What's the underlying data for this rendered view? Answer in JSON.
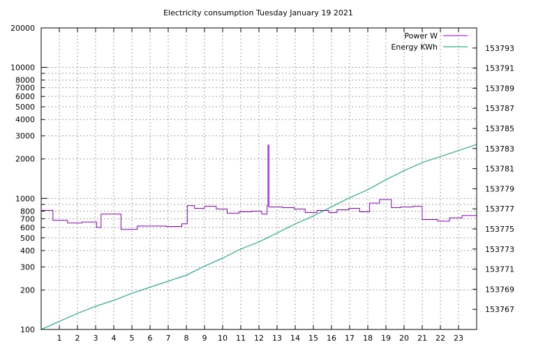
{
  "chart_data": {
    "type": "line",
    "title": "Electricity consumption Tuesday January 19 2021",
    "xlabel": "",
    "ylabel": "",
    "y2label": "",
    "x_ticks": [
      "1",
      "2",
      "3",
      "4",
      "5",
      "6",
      "7",
      "8",
      "9",
      "10",
      "11",
      "12",
      "13",
      "14",
      "15",
      "16",
      "17",
      "18",
      "19",
      "20",
      "21",
      "22",
      "23"
    ],
    "xlim": [
      0,
      24
    ],
    "y_scale": "log",
    "ylim": [
      100,
      20000
    ],
    "y_major_ticks": [
      100,
      1000,
      10000
    ],
    "y_minor_labeled_ticks": [
      200,
      300,
      400,
      500,
      600,
      700,
      800,
      2000,
      3000,
      4000,
      5000,
      6000,
      7000,
      8000,
      20000
    ],
    "y_unlabeled_ticks": [
      900,
      9000
    ],
    "y_tick_labels": [
      "100",
      "200",
      "300",
      "400",
      "500",
      "600",
      "700",
      "800",
      "1000",
      "2000",
      "3000",
      "4000",
      "5000",
      "6000",
      "7000",
      "8000",
      "10000",
      "20000"
    ],
    "y2_scale": "linear",
    "y2lim": [
      153765,
      153795
    ],
    "y2_ticks": [
      153767,
      153769,
      153771,
      153773,
      153775,
      153777,
      153779,
      153781,
      153783,
      153785,
      153787,
      153789,
      153791,
      153793
    ],
    "y2_tick_labels": [
      "153767",
      "153769",
      "153771",
      "153773",
      "153775",
      "153777",
      "153779",
      "153781",
      "153783",
      "153785",
      "153787",
      "153789",
      "153791",
      "153793"
    ],
    "grid": true,
    "legend_position": "top-right",
    "series": [
      {
        "name": "Power W",
        "axis": "y",
        "color": "#9400d3",
        "step": true,
        "points": [
          [
            0.0,
            810
          ],
          [
            0.65,
            680
          ],
          [
            1.45,
            650
          ],
          [
            2.25,
            660
          ],
          [
            3.05,
            600
          ],
          [
            3.3,
            760
          ],
          [
            4.4,
            580
          ],
          [
            5.3,
            615
          ],
          [
            6.9,
            610
          ],
          [
            7.75,
            640
          ],
          [
            8.05,
            880
          ],
          [
            8.45,
            840
          ],
          [
            9.0,
            870
          ],
          [
            9.65,
            830
          ],
          [
            10.25,
            770
          ],
          [
            10.9,
            790
          ],
          [
            11.6,
            800
          ],
          [
            12.15,
            760
          ],
          [
            12.45,
            880
          ],
          [
            12.5,
            2550
          ],
          [
            12.55,
            860
          ],
          [
            13.3,
            850
          ],
          [
            13.95,
            830
          ],
          [
            14.55,
            780
          ],
          [
            15.2,
            810
          ],
          [
            15.85,
            780
          ],
          [
            16.3,
            820
          ],
          [
            16.95,
            840
          ],
          [
            17.55,
            790
          ],
          [
            18.1,
            920
          ],
          [
            18.65,
            980
          ],
          [
            19.3,
            850
          ],
          [
            19.8,
            860
          ],
          [
            20.5,
            870
          ],
          [
            21.0,
            690
          ],
          [
            21.85,
            670
          ],
          [
            22.5,
            710
          ],
          [
            23.2,
            740
          ],
          [
            24.0,
            740
          ]
        ]
      },
      {
        "name": "Energy KWh",
        "axis": "y2",
        "color": "#009e73",
        "step": false,
        "points": [
          [
            0.0,
            153765.0
          ],
          [
            1.0,
            153765.8
          ],
          [
            2.0,
            153766.6
          ],
          [
            3.0,
            153767.3
          ],
          [
            4.0,
            153767.9
          ],
          [
            5.0,
            153768.6
          ],
          [
            6.0,
            153769.2
          ],
          [
            7.0,
            153769.8
          ],
          [
            8.0,
            153770.4
          ],
          [
            9.0,
            153771.3
          ],
          [
            10.0,
            153772.1
          ],
          [
            11.0,
            153773.0
          ],
          [
            12.0,
            153773.7
          ],
          [
            13.0,
            153774.6
          ],
          [
            14.0,
            153775.5
          ],
          [
            15.0,
            153776.3
          ],
          [
            16.0,
            153777.2
          ],
          [
            17.0,
            153778.1
          ],
          [
            18.0,
            153778.9
          ],
          [
            19.0,
            153779.9
          ],
          [
            20.0,
            153780.8
          ],
          [
            21.0,
            153781.6
          ],
          [
            22.0,
            153782.2
          ],
          [
            23.0,
            153782.8
          ],
          [
            24.0,
            153783.4
          ]
        ]
      }
    ]
  }
}
